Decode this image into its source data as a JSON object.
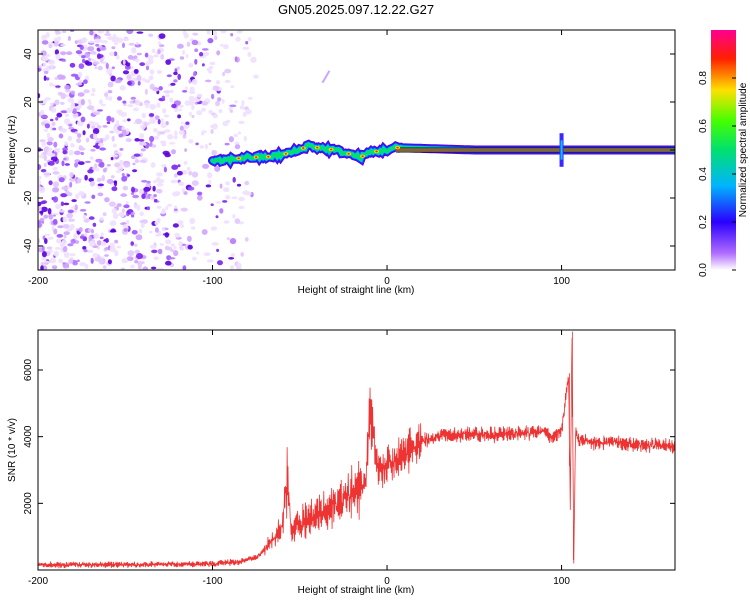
{
  "title": "GN05.2025.097.12.22.G27",
  "chart_data": [
    {
      "type": "heatmap",
      "xlabel": "Height of straight line (km)",
      "ylabel": "Frequency (Hz)",
      "xlim": [
        -200,
        165
      ],
      "ylim": [
        -50,
        50
      ],
      "xticks": [
        -200,
        -100,
        0,
        100
      ],
      "yticks": [
        -40,
        -20,
        0,
        20,
        40
      ],
      "colorbar": {
        "label": "Normalized spectral amplitude",
        "range": [
          0,
          1
        ],
        "ticks": [
          "0.0",
          "0.2",
          "0.4",
          "0.6",
          "0.8"
        ]
      },
      "ridge": {
        "description_points_x": [
          -100,
          -90,
          -80,
          -70,
          -60,
          -50,
          -45,
          -40,
          -30,
          -20,
          -15,
          -10,
          0,
          5,
          50,
          100,
          165
        ],
        "description_points_y": [
          -5,
          -4,
          -3,
          -3,
          -2,
          0,
          2,
          1,
          0,
          -2,
          -3,
          -1,
          0,
          1,
          0,
          0,
          0
        ]
      }
    },
    {
      "type": "line",
      "xlabel": "Height of straight line (km)",
      "ylabel": "SNR (10 * v/v)",
      "xlim": [
        -200,
        165
      ],
      "ylim": [
        0,
        7200
      ],
      "xticks": [
        -200,
        -100,
        0,
        100
      ],
      "yticks": [
        2000,
        4000,
        6000
      ],
      "color": "#ee3333",
      "series": [
        {
          "name": "SNR",
          "x": [
            -200,
            -150,
            -100,
            -85,
            -75,
            -70,
            -65,
            -60,
            -57,
            -55,
            -50,
            -45,
            -40,
            -35,
            -30,
            -25,
            -20,
            -15,
            -12,
            -10,
            -5,
            0,
            5,
            10,
            15,
            20,
            25,
            30,
            40,
            50,
            60,
            70,
            80,
            90,
            95,
            100,
            104,
            105,
            106,
            107,
            108,
            110,
            120,
            130,
            140,
            150,
            160,
            165
          ],
          "y": [
            150,
            160,
            180,
            250,
            380,
            650,
            900,
            1300,
            2800,
            1200,
            1400,
            1500,
            1700,
            1800,
            2000,
            2100,
            2300,
            2500,
            2600,
            4900,
            2900,
            3100,
            3300,
            3500,
            3700,
            3850,
            3950,
            4000,
            4050,
            4100,
            4050,
            4100,
            4100,
            4150,
            4000,
            4200,
            5800,
            2000,
            7100,
            300,
            4100,
            3900,
            3800,
            3850,
            3800,
            3750,
            3750,
            3700
          ]
        }
      ]
    }
  ]
}
